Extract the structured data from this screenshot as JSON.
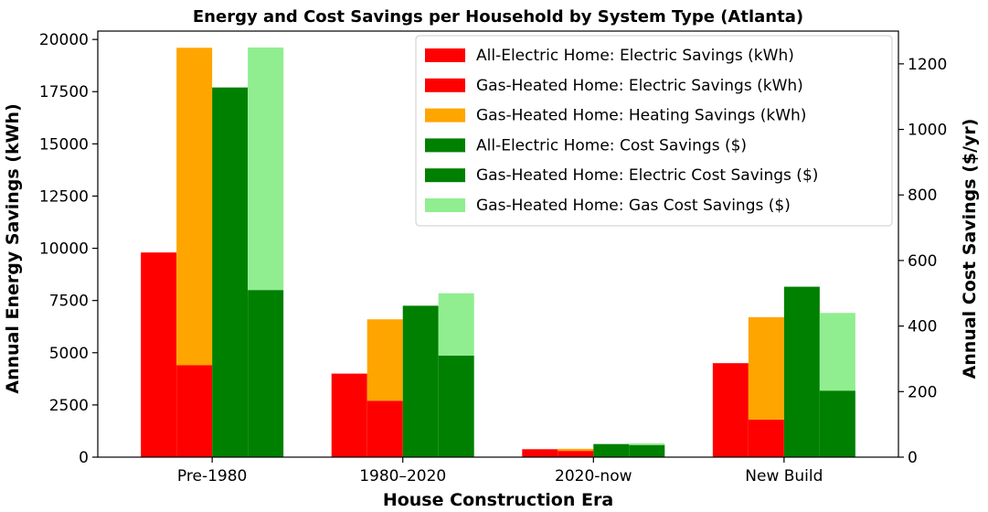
{
  "chart_data": {
    "type": "bar",
    "title": "Energy and Cost Savings per Household by System Type (Atlanta)",
    "xlabel": "House Construction Era",
    "ylabel": "Annual Energy Savings (kWh)",
    "y2label": "Annual Cost Savings ($/yr)",
    "categories": [
      "Pre-1980",
      "1980–2020",
      "2020-now",
      "New Build"
    ],
    "ylim": [
      0,
      20400
    ],
    "y2lim": [
      0,
      1300
    ],
    "yticks": [
      0,
      2500,
      5000,
      7500,
      10000,
      12500,
      15000,
      17500,
      20000
    ],
    "y2ticks": [
      0,
      200,
      400,
      600,
      800,
      1000,
      1200
    ],
    "grid": false,
    "legend_position": "top-right",
    "series": [
      {
        "name": "All-Electric Home: Electric Savings (kWh)",
        "color": "#ff0000",
        "axis": "left",
        "slot": 0,
        "stack": "none",
        "values": [
          9800,
          4000,
          380,
          4500
        ]
      },
      {
        "name": "Gas-Heated Home: Electric Savings (kWh)",
        "color": "#ff0000",
        "axis": "left",
        "slot": 1,
        "stack": "base",
        "values": [
          4400,
          2700,
          300,
          1800
        ]
      },
      {
        "name": "Gas-Heated Home: Heating Savings (kWh)",
        "color": "#ffa500",
        "axis": "left",
        "slot": 1,
        "stack": "top",
        "values": [
          15200,
          3900,
          100,
          4900
        ]
      },
      {
        "name": "All-Electric Home: Cost Savings ($)",
        "color": "#008000",
        "axis": "right",
        "slot": 2,
        "stack": "none",
        "values": [
          1128,
          462,
          40,
          520
        ]
      },
      {
        "name": "Gas-Heated Home: Electric Cost Savings ($)",
        "color": "#008000",
        "axis": "right",
        "slot": 3,
        "stack": "base",
        "values": [
          510,
          310,
          37,
          203
        ]
      },
      {
        "name": "Gas-Heated Home: Gas Cost Savings ($)",
        "color": "#90ee90",
        "axis": "right",
        "slot": 3,
        "stack": "top",
        "values": [
          740,
          190,
          5,
          237
        ]
      }
    ]
  }
}
